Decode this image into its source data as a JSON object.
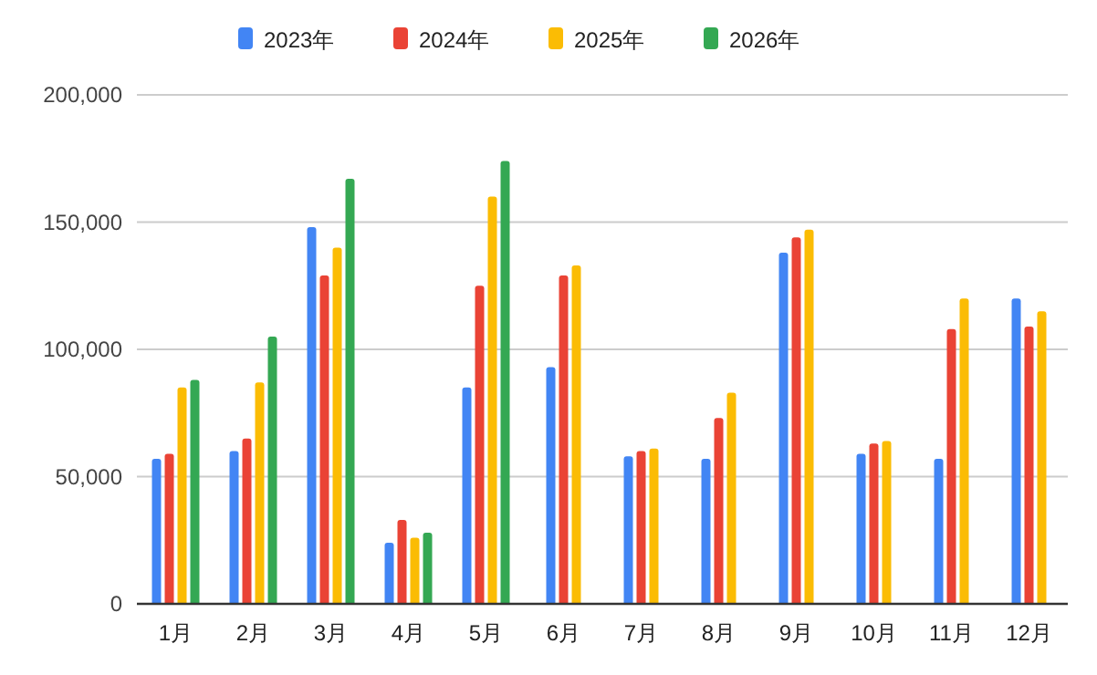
{
  "chart_data": {
    "type": "bar",
    "categories": [
      "1月",
      "2月",
      "3月",
      "4月",
      "5月",
      "6月",
      "7月",
      "8月",
      "9月",
      "10月",
      "11月",
      "12月"
    ],
    "series": [
      {
        "name": "2023年",
        "color": "#4285f4",
        "values": [
          57000,
          60000,
          148000,
          24000,
          85000,
          93000,
          58000,
          57000,
          138000,
          59000,
          57000,
          120000
        ]
      },
      {
        "name": "2024年",
        "color": "#ea4335",
        "values": [
          59000,
          65000,
          129000,
          33000,
          125000,
          129000,
          60000,
          73000,
          144000,
          63000,
          108000,
          109000
        ]
      },
      {
        "name": "2025年",
        "color": "#fbbc04",
        "values": [
          85000,
          87000,
          140000,
          26000,
          160000,
          133000,
          61000,
          83000,
          147000,
          64000,
          120000,
          115000
        ]
      },
      {
        "name": "2026年",
        "color": "#34a853",
        "values": [
          88000,
          105000,
          167000,
          28000,
          174000,
          null,
          null,
          null,
          null,
          null,
          null,
          null
        ]
      }
    ],
    "ylim": [
      0,
      200000
    ],
    "yticks": [
      {
        "value": 0,
        "label": "0"
      },
      {
        "value": 50000,
        "label": "50,000"
      },
      {
        "value": 100000,
        "label": "100,000"
      },
      {
        "value": 150000,
        "label": "150,000"
      },
      {
        "value": 200000,
        "label": "200,000"
      }
    ],
    "grid": "y",
    "legend": "top"
  }
}
